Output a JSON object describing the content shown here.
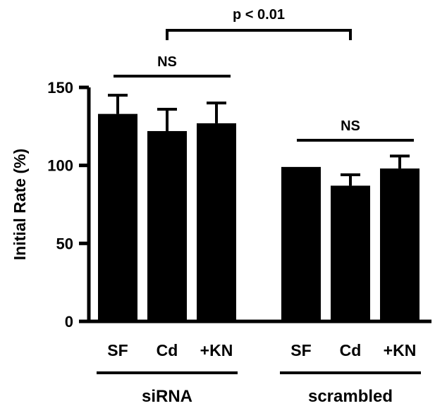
{
  "chart_data": {
    "type": "bar",
    "ylabel": "Initial Rate (%)",
    "ylim": [
      0,
      150
    ],
    "yticks": [
      0,
      50,
      100,
      150
    ],
    "categories": [
      "SF",
      "Cd",
      "+KN",
      "SF",
      "Cd",
      "+KN"
    ],
    "values": [
      133,
      122,
      127,
      99,
      87,
      98
    ],
    "errors": [
      12,
      14,
      13,
      0,
      7,
      8
    ],
    "groups": [
      {
        "label": "siRNA",
        "indices": [
          0,
          1,
          2
        ]
      },
      {
        "label": "scrambled",
        "indices": [
          3,
          4,
          5
        ]
      }
    ],
    "annotations": [
      {
        "text": "NS",
        "from": 0,
        "to": 2,
        "type": "line"
      },
      {
        "text": "NS",
        "from": 3,
        "to": 5,
        "type": "line"
      },
      {
        "text": "p < 0.01",
        "from": 1,
        "to": 4,
        "type": "bracket"
      }
    ],
    "bar_color": "#000000",
    "grid": false,
    "legend": "none"
  }
}
